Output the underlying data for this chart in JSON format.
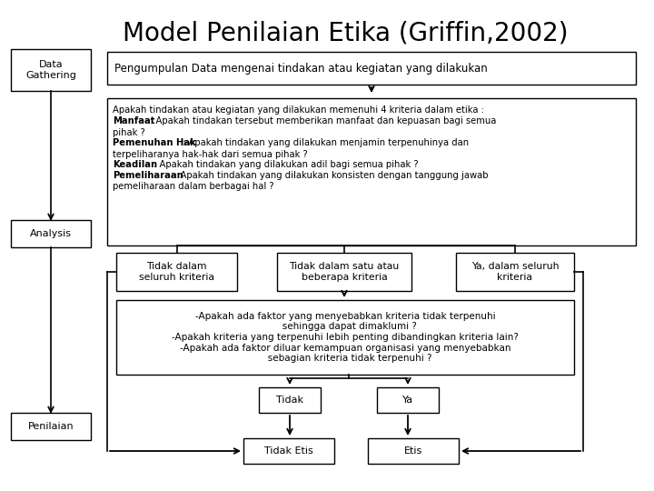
{
  "title": "Model Penilaian Etika (Griffin,2002)",
  "title_fontsize": 20,
  "bg_color": "#ffffff",
  "box_color": "#ffffff",
  "box_edge": "#000000",
  "text_color": "#000000",
  "label_dg": "Data\nGathering",
  "label_an": "Analysis",
  "label_pn": "Penilaian",
  "box1_text": "Pengumpulan Data mengenai tindakan atau kegiatan yang dilakukan",
  "box3a_text": "Tidak dalam\nseluruh kriteria",
  "box3b_text": "Tidak dalam satu atau\nbeberapa kriteria",
  "box3c_text": "Ya, dalam seluruh\nkriteria",
  "box4_text": "-Apakah ada faktor yang menyebabkan kriteria tidak terpenuhi\n   sehingga dapat dimaklumi ?\n-Apakah kriteria yang terpenuhi lebih penting dibandingkan kriteria lain?\n-Apakah ada faktor diluar kemampuan organisasi yang menyebabkan\n   sebagian kriteria tidak terpenuhi ?",
  "box5a_text": "Tidak",
  "box5b_text": "Ya",
  "box6a_text": "Tidak Etis",
  "box6b_text": "Etis",
  "box2_line1": "Apakah tindakan atau kegiatan yang dilakukan memenuhi 4 kriteria dalam etika :",
  "box2_b1": "Manfaat",
  "box2_n1": " : Apakah tindakan tersebut memberikan manfaat dan kepuasan bagi semua",
  "box2_n1b": "pihak ?",
  "box2_b2": "Pemenuhan Hak",
  "box2_n2": " : Apakah tindakan yang dilakukan menjamin terpenuhinya dan",
  "box2_n2b": "terpeliharanya hak-hak dari semua pihak ?",
  "box2_b3": "Keadilan",
  "box2_n3": " : Apakah tindakan yang dilakukan adil bagi semua pihak ?",
  "box2_b4": "Pemeliharaan",
  "box2_n4": " : Apakah tindakan yang dilakukan konsisten dengan tanggung jawab",
  "box2_n4b": "pemeliharaan dalam berbagai hal ?"
}
